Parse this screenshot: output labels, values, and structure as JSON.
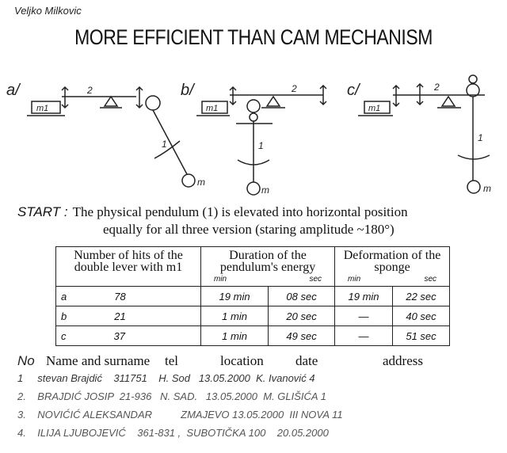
{
  "author": "Veljko Milkovic",
  "title": "MORE EFFICIENT THAN CAM MECHANISM",
  "diagrams": [
    {
      "label": "a/",
      "mass1": "m1",
      "lever": "2",
      "pendulum": "1",
      "mass": "m"
    },
    {
      "label": "b/",
      "mass1": "m1",
      "lever": "2",
      "pendulum": "1",
      "mass": "m"
    },
    {
      "label": "c/",
      "mass1": "m1",
      "lever": "2",
      "pendulum": "1",
      "mass": "m"
    }
  ],
  "start": {
    "label": "START :",
    "line1": "The physical pendulum (1) is elevated into horizontal position",
    "line2": "equally for all three version (staring amplitude ~180°)"
  },
  "table": {
    "headers": [
      "Number of hits of the double lever with m1",
      "Duration of the pendulum's energy",
      "Deformation of the sponge"
    ],
    "sub": {
      "min": "min",
      "sec": "sec"
    },
    "rows": [
      [
        "a",
        "78",
        "19 min",
        "08 sec",
        "19 min",
        "22 sec"
      ],
      [
        "b",
        "21",
        "1 min",
        "20 sec",
        "—",
        "40 sec"
      ],
      [
        "c",
        "37",
        "1 min",
        "49 sec",
        "—",
        "51 sec"
      ]
    ]
  },
  "signatures": {
    "headers": [
      "No",
      "Name and surname",
      "tel",
      "location",
      "date",
      "address"
    ],
    "rows": [
      "1     stevan Brajdić    311751    H. Sod   13.05.2000  K. Ivanović 4",
      "2.    BRAJDIĆ JOSIP  21-936   N. SAD.   13.05.2000  M. GLIŠIĆA 1",
      "3.    NOVIĆIĆ ALEKSANDAR          ZMAJEVO 13.05.2000  III NOVA 11",
      "4.    ILIJA LJUBOJEVIĆ    361-831 ,  SUBOTIČKA 100    20.05.2000"
    ]
  }
}
